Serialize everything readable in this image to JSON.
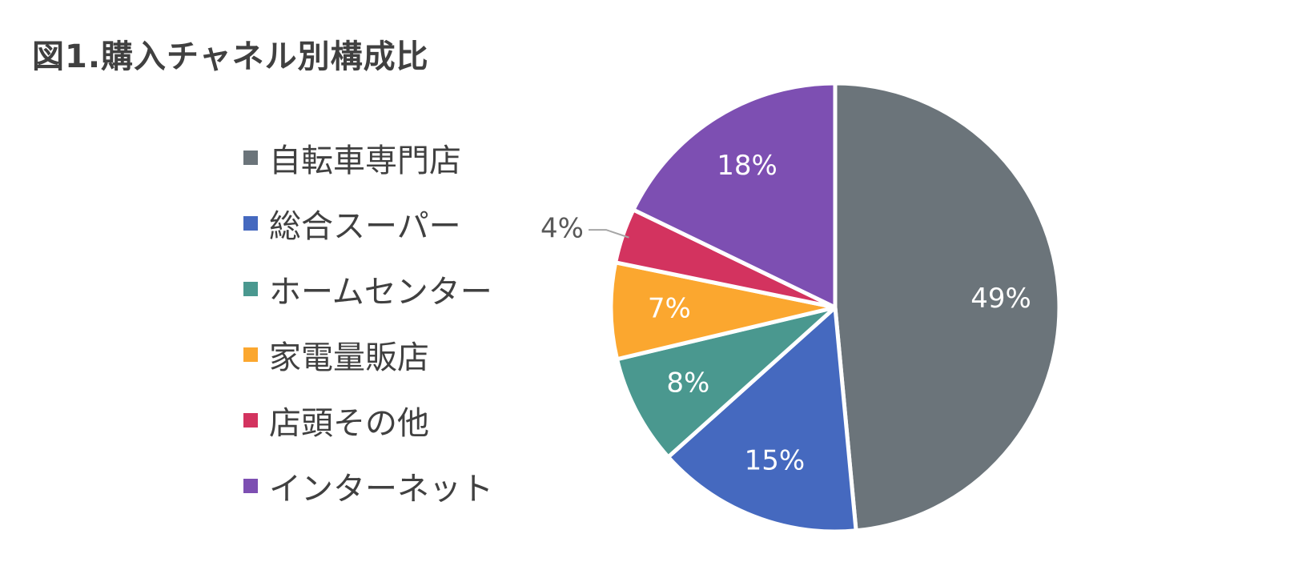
{
  "title": "図1.購入チャネル別構成比",
  "chart_data": {
    "type": "pie",
    "title": "図1.購入チャネル別構成比",
    "legend_position": "left",
    "slices": [
      {
        "label": "自転車専門店",
        "value": 49,
        "display": "49%",
        "color": "#6b747a"
      },
      {
        "label": "総合スーパー",
        "value": 15,
        "display": "15%",
        "color": "#4569bf"
      },
      {
        "label": "ホームセンター",
        "value": 8,
        "display": "8%",
        "color": "#4a988f"
      },
      {
        "label": "家電量販店",
        "value": 7,
        "display": "7%",
        "color": "#fba72f"
      },
      {
        "label": "店頭その他",
        "value": 4,
        "display": "4%",
        "color": "#d3335f"
      },
      {
        "label": "インターネット",
        "value": 18,
        "display": "18%",
        "color": "#7d4fb2"
      }
    ]
  }
}
